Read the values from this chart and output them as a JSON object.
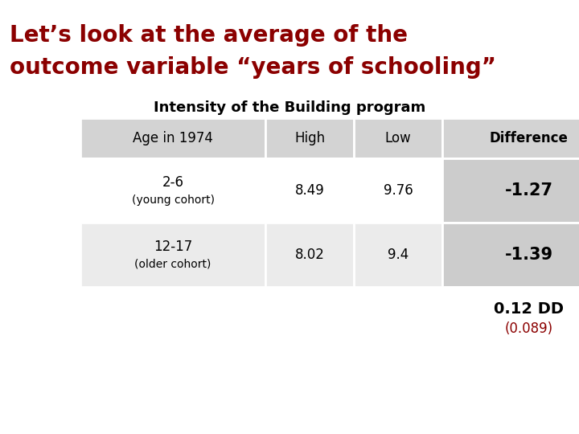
{
  "title_line1": "Let’s look at the average of the",
  "title_line2": "outcome variable “years of schooling”",
  "title_color": "#8B0000",
  "subtitle": "Intensity of the Building program",
  "subtitle_color": "#000000",
  "bg_color": "#FFFFFF",
  "table_header": [
    "Age in 1974",
    "High",
    "Low",
    "Difference"
  ],
  "row1_label1": "2-6",
  "row1_label2": "(young cohort)",
  "row1_high": "8.49",
  "row1_low": "9.76",
  "row1_diff": "-1.27",
  "row2_label1": "12-17",
  "row2_label2": "(older cohort)",
  "row2_high": "8.02",
  "row2_low": "9.4",
  "row2_diff": "-1.39",
  "dd_value": "0.12 DD",
  "dd_sub": "(0.089)",
  "dd_sub_color": "#8B0000",
  "header_bg": "#D3D3D3",
  "row_bg_light": "#FFFFFF",
  "row_bg_dark": "#EBEBEB",
  "diff_col_bg": "#CCCCCC",
  "table_text_color": "#000000",
  "title_fontsize": 20,
  "subtitle_fontsize": 13
}
